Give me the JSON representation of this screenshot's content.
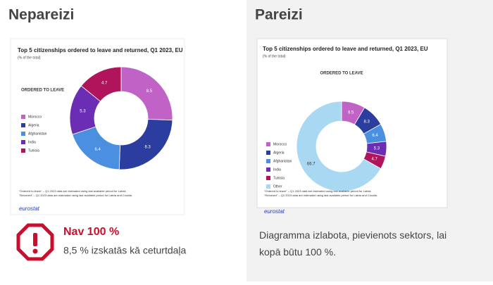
{
  "panels": [
    {
      "heading": "Nepareizi",
      "verdict": "Nav 100 %",
      "note": "8,5 % izskatās kā ceturtdaļa"
    },
    {
      "heading": "Pareizi",
      "note": "Diagramma izlabota, pievienots sektors, lai kopā būtu 100 %."
    }
  ],
  "chart_data": [
    {
      "type": "donut",
      "title": "Top 5 citizenships ordered to leave and returned, Q1 2023, EU",
      "subtitle": "(% of the total)",
      "section": "ORDERED TO LEAVE",
      "categories": [
        "Morocco",
        "Algeria",
        "Afghanistan",
        "India",
        "Tunisia"
      ],
      "values": [
        8.5,
        8.3,
        6.4,
        5.3,
        4.7
      ],
      "colors": [
        "#c062c6",
        "#2b3d9e",
        "#4a8fe0",
        "#6a2db3",
        "#b0155c"
      ],
      "footnotes": [
        "\"Ordered to leave\" – Q1 2023 data are estimated using last available period for Latvia.",
        "\"Returned\" – Q1 2023 data are estimated using last available period for Latvia and Croatia."
      ],
      "source": "eurostat"
    },
    {
      "type": "donut",
      "title": "Top 5 citizenships ordered to leave and returned, Q1 2023, EU",
      "subtitle": "(% of the total)",
      "section": "ORDERED TO LEAVE",
      "categories": [
        "Morocco",
        "Algeria",
        "Afghanistan",
        "India",
        "Tunisia",
        "Other"
      ],
      "values": [
        8.5,
        8.3,
        6.4,
        5.3,
        4.7,
        66.7
      ],
      "colors": [
        "#c062c6",
        "#2b3d9e",
        "#4a8fe0",
        "#6a2db3",
        "#b0155c",
        "#a9d9f2"
      ],
      "footnotes": [
        "\"Ordered to leave\" – Q1 2023 data are estimated using last available period for Latvia.",
        "\"Returned\" – Q1 2023 data are estimated using last available period for Latvia and Croatia."
      ],
      "source": "eurostat"
    }
  ]
}
